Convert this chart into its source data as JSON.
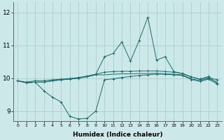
{
  "xlabel": "Humidex (Indice chaleur)",
  "ylabel": "",
  "background_color": "#cce8e8",
  "line_color": "#1e6b6b",
  "grid_color": "#aacece",
  "x_labels": [
    "0",
    "1",
    "2",
    "3",
    "4",
    "5",
    "6",
    "7",
    "8",
    "9",
    "10",
    "11",
    "12",
    "13",
    "14",
    "15",
    "16",
    "17",
    "18",
    "19",
    "20",
    "21",
    "22",
    "23"
  ],
  "ylim": [
    8.7,
    12.3
  ],
  "yticks": [
    9,
    10,
    11,
    12
  ],
  "xlim": [
    -0.5,
    23.5
  ],
  "line_upper_y": [
    9.92,
    9.88,
    9.92,
    9.92,
    9.95,
    9.97,
    9.99,
    10.02,
    10.06,
    10.12,
    10.18,
    10.2,
    10.21,
    10.21,
    10.22,
    10.22,
    10.22,
    10.2,
    10.18,
    10.14,
    10.04,
    9.97,
    10.02,
    9.95
  ],
  "line_peak_y": [
    9.92,
    9.86,
    9.88,
    9.88,
    9.92,
    9.95,
    9.97,
    10.0,
    10.06,
    10.12,
    10.65,
    10.75,
    11.1,
    10.52,
    11.15,
    11.85,
    10.55,
    10.65,
    10.2,
    10.14,
    10.04,
    9.97,
    10.05,
    9.85
  ],
  "line_lower_y": [
    9.92,
    9.86,
    9.88,
    9.62,
    9.42,
    9.28,
    8.84,
    8.76,
    8.78,
    9.0,
    9.95,
    9.98,
    10.02,
    10.05,
    10.08,
    10.1,
    10.12,
    10.12,
    10.1,
    10.08,
    9.96,
    9.9,
    9.97,
    9.82
  ],
  "line_flat_y": [
    9.92,
    9.86,
    9.88,
    9.88,
    9.92,
    9.95,
    9.97,
    10.0,
    10.04,
    10.1,
    10.1,
    10.12,
    10.13,
    10.13,
    10.14,
    10.14,
    10.15,
    10.13,
    10.12,
    10.1,
    9.98,
    9.93,
    9.99,
    9.88
  ]
}
